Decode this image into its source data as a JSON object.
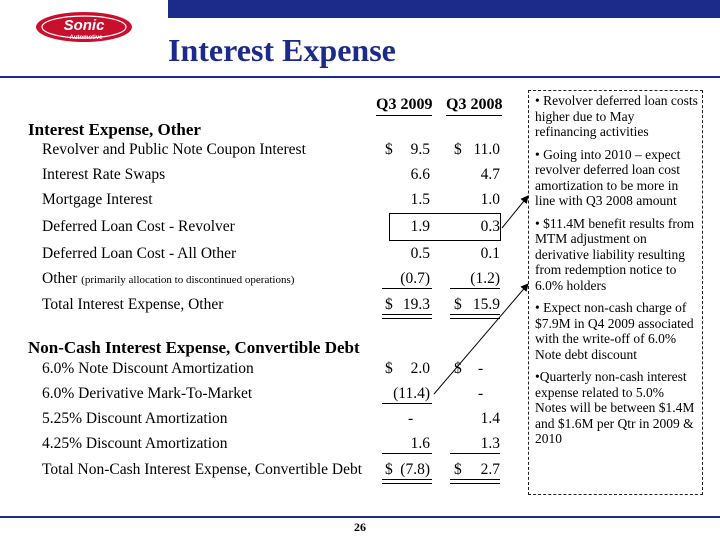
{
  "header": {
    "title": "Interest Expense",
    "logo_text": "Sonic",
    "logo_subtext": "Automotive",
    "brand_color": "#1c2a8a",
    "logo_color": "#c8102e"
  },
  "columns": [
    "Q3 2009",
    "Q3 2008"
  ],
  "sections": [
    {
      "title": "Interest Expense, Other",
      "rows": [
        {
          "label": "Revolver and Public Note Coupon Interest",
          "d1": "$",
          "v1": "9.5",
          "d2": "$",
          "v2": "11.0"
        },
        {
          "label": "Interest Rate Swaps",
          "v1": "6.6",
          "v2": "4.7"
        },
        {
          "label": "Mortgage Interest",
          "v1": "1.5",
          "v2": "1.0"
        },
        {
          "label": "Deferred Loan Cost - Revolver",
          "v1": "1.9",
          "v2": "0.3"
        },
        {
          "label": "Deferred Loan Cost - All Other",
          "v1": "0.5",
          "v2": "0.1"
        },
        {
          "label": "Other",
          "note": "(primarily allocation to discontinued operations)",
          "v1": "(0.7)",
          "v2": "(1.2)"
        },
        {
          "label": "Total Interest Expense, Other",
          "d1": "$",
          "v1": "19.3",
          "d2": "$",
          "v2": "15.9"
        }
      ]
    },
    {
      "title": "Non-Cash Interest Expense, Convertible Debt",
      "rows": [
        {
          "label": "6.0% Note Discount Amortization",
          "d1": "$",
          "v1": "2.0",
          "d2": "$",
          "v2": "-"
        },
        {
          "label": "6.0% Derivative Mark-To-Market",
          "v1": "(11.4)",
          "v2": "-"
        },
        {
          "label": "5.25% Discount Amortization",
          "v1": "-",
          "v2": "1.4"
        },
        {
          "label": "4.25% Discount Amortization",
          "v1": "1.6",
          "v2": "1.3"
        },
        {
          "label": "Total Non-Cash Interest Expense, Convertible Debt",
          "d1": "$",
          "v1": "(7.8)",
          "d2": "$",
          "v2": "2.7"
        }
      ]
    }
  ],
  "notes": [
    "• Revolver deferred loan costs higher due to May refinancing activities",
    "• Going into 2010 – expect revolver deferred loan cost amortization to be more in line with Q3 2008 amount",
    "• $11.4M benefit results from MTM adjustment on derivative liability resulting from redemption notice to 6.0% holders",
    "• Expect non-cash charge of $7.9M in Q4 2009 associated with the write-off of 6.0% Note debt discount",
    "•Quarterly non-cash interest expense related to 5.0% Notes will be between $1.4M and $1.6M per Qtr in 2009 & 2010"
  ],
  "footer": {
    "page_number": "26"
  }
}
